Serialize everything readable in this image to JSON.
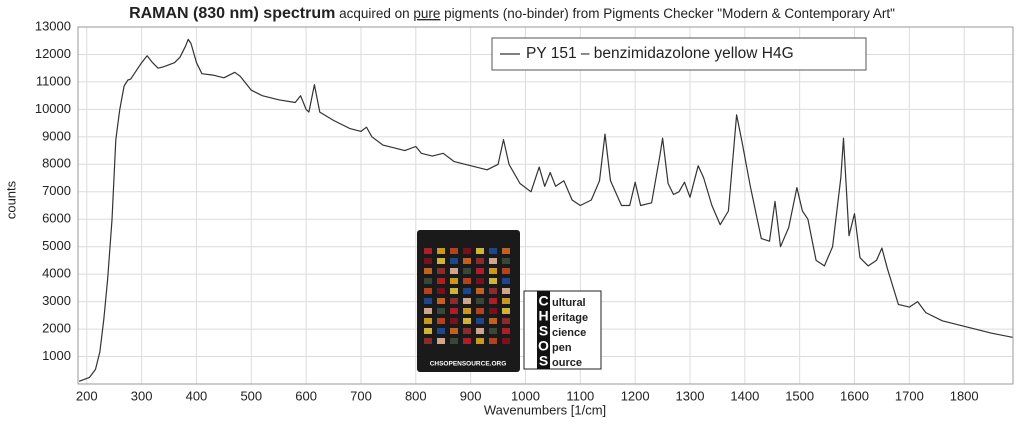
{
  "chart_data": {
    "type": "line",
    "title_parts": [
      "RAMAN (830 nm) spectrum",
      " acquired on ",
      "pure",
      " pigments (no-binder) from Pigments Checker \"Modern & Contemporary Art\""
    ],
    "x_label": "Wavenumbers [1/cm]",
    "y_label": "counts",
    "xlim": [
      184,
      1889
    ],
    "ylim": [
      0,
      13000
    ],
    "xticks": [
      200,
      300,
      400,
      500,
      600,
      700,
      800,
      900,
      1000,
      1100,
      1200,
      1300,
      1400,
      1500,
      1600,
      1700,
      1800
    ],
    "yticks": [
      1000,
      2000,
      3000,
      4000,
      5000,
      6000,
      7000,
      8000,
      9000,
      10000,
      11000,
      12000,
      13000
    ],
    "grid": true,
    "legend_position": "upper right",
    "x": [
      186,
      205,
      216,
      224,
      231,
      238,
      246,
      253,
      260,
      268,
      275,
      280,
      290,
      300,
      310,
      320,
      330,
      340,
      360,
      370,
      380,
      385,
      390,
      400,
      410,
      430,
      450,
      470,
      480,
      500,
      520,
      550,
      580,
      590,
      600,
      605,
      615,
      625,
      650,
      680,
      700,
      710,
      720,
      740,
      760,
      780,
      800,
      810,
      830,
      850,
      870,
      900,
      930,
      950,
      960,
      970,
      990,
      1010,
      1025,
      1035,
      1045,
      1055,
      1070,
      1085,
      1100,
      1120,
      1135,
      1145,
      1155,
      1175,
      1190,
      1200,
      1210,
      1230,
      1245,
      1250,
      1260,
      1270,
      1280,
      1290,
      1300,
      1315,
      1325,
      1340,
      1355,
      1370,
      1385,
      1395,
      1410,
      1430,
      1445,
      1455,
      1465,
      1480,
      1495,
      1505,
      1515,
      1530,
      1545,
      1560,
      1575,
      1580,
      1590,
      1600,
      1610,
      1625,
      1640,
      1650,
      1660,
      1680,
      1700,
      1715,
      1730,
      1760,
      1800,
      1850,
      1888
    ],
    "series": [
      {
        "name": "PY 151 – benzimidazolone yellow H4G",
        "color": "#333333",
        "values": [
          100,
          240,
          530,
          1180,
          2350,
          3800,
          5980,
          8890,
          9980,
          10850,
          11070,
          11100,
          11400,
          11700,
          11950,
          11700,
          11500,
          11550,
          11700,
          11900,
          12300,
          12550,
          12400,
          11700,
          11300,
          11250,
          11150,
          11350,
          11200,
          10700,
          10500,
          10350,
          10250,
          10500,
          10000,
          9900,
          10900,
          9900,
          9600,
          9300,
          9200,
          9350,
          9000,
          8700,
          8600,
          8500,
          8650,
          8400,
          8300,
          8400,
          8100,
          7950,
          7800,
          8000,
          8900,
          8000,
          7300,
          7000,
          7900,
          7200,
          7700,
          7200,
          7400,
          6700,
          6500,
          6700,
          7400,
          9100,
          7400,
          6500,
          6500,
          7350,
          6500,
          6600,
          8300,
          8950,
          7300,
          6900,
          7000,
          7350,
          6800,
          7950,
          7500,
          6500,
          5800,
          6300,
          9800,
          8800,
          7200,
          5300,
          5200,
          6650,
          5000,
          5700,
          7150,
          6300,
          6000,
          4500,
          4300,
          5000,
          7500,
          8950,
          5400,
          6200,
          4600,
          4300,
          4500,
          4950,
          4200,
          2900,
          2800,
          3000,
          2600,
          2300,
          2100,
          1850,
          1700
        ]
      }
    ]
  },
  "inset": {
    "card_url": "CHSOPENSOURCE.ORG",
    "logo_letters": [
      "C",
      "H",
      "S",
      "O",
      "S"
    ],
    "logo_words": [
      "ultural",
      "eritage",
      "cience",
      "pen",
      "ource"
    ]
  }
}
